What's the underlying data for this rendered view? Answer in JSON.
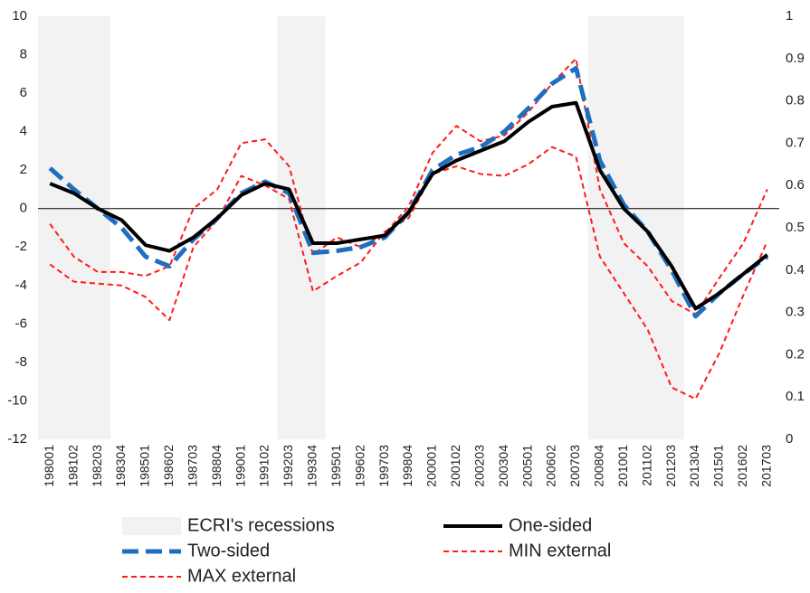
{
  "chart_data": {
    "type": "line",
    "categories": [
      "198001",
      "198102",
      "198203",
      "198304",
      "198501",
      "198602",
      "198703",
      "198804",
      "199001",
      "199102",
      "199203",
      "199304",
      "199501",
      "199602",
      "199703",
      "199804",
      "200001",
      "200102",
      "200203",
      "200304",
      "200501",
      "200602",
      "200703",
      "200804",
      "201001",
      "201102",
      "201203",
      "201304",
      "201501",
      "201602",
      "201703"
    ],
    "series": [
      {
        "name": "ECRI's recessions",
        "type": "bar",
        "axis": "y2",
        "color": "#f2f2f2",
        "values": [
          1,
          1,
          1,
          0,
          0,
          0,
          0,
          0,
          0,
          0,
          1,
          1,
          0,
          0,
          0,
          0,
          0,
          0,
          0,
          0,
          0,
          0,
          0,
          1,
          1,
          1,
          1,
          0,
          0,
          0,
          0
        ]
      },
      {
        "name": "One-sided",
        "type": "line",
        "color": "#000000",
        "dash": "solid",
        "width": 4,
        "values": [
          1.3,
          0.8,
          0,
          -0.6,
          -1.9,
          -2.2,
          -1.5,
          -0.5,
          0.7,
          1.3,
          1.0,
          -1.8,
          -1.8,
          -1.6,
          -1.4,
          -0.2,
          1.8,
          2.5,
          3.0,
          3.5,
          4.5,
          5.3,
          5.5,
          2.0,
          0.0,
          -1.2,
          -3.0,
          -5.2,
          -4.4,
          -3.4,
          -2.4
        ]
      },
      {
        "name": "Two-sided",
        "type": "line",
        "color": "#1f6fc0",
        "dash": "long",
        "width": 5,
        "values": [
          2.1,
          1.0,
          0,
          -1.0,
          -2.5,
          -3.0,
          -1.6,
          -0.5,
          0.8,
          1.4,
          0.8,
          -2.3,
          -2.2,
          -2.0,
          -1.5,
          -0.2,
          2.0,
          2.8,
          3.2,
          4.0,
          5.2,
          6.5,
          7.3,
          2.5,
          0.2,
          -1.2,
          -3.2,
          -5.6,
          -4.4,
          -3.4,
          -2.5
        ]
      },
      {
        "name": "MIN external",
        "type": "line",
        "color": "#ff1a1a",
        "dash": "short",
        "width": 2,
        "values": [
          -2.9,
          -3.8,
          -3.9,
          -4.0,
          -4.6,
          -5.8,
          -2.0,
          -0.6,
          1.7,
          1.2,
          0.5,
          -4.3,
          -3.5,
          -2.8,
          -1.2,
          -0.5,
          1.8,
          2.2,
          1.8,
          1.7,
          2.3,
          3.2,
          2.7,
          -2.5,
          -4.4,
          -6.3,
          -9.3,
          -9.9,
          -7.5,
          -4.5,
          -1.7
        ]
      },
      {
        "name": "MAX external",
        "type": "line",
        "color": "#ff1a1a",
        "dash": "short",
        "width": 2,
        "values": [
          -0.8,
          -2.5,
          -3.3,
          -3.3,
          -3.5,
          -3.0,
          0.0,
          1.0,
          3.4,
          3.6,
          2.2,
          -2.4,
          -1.5,
          -2.0,
          -1.3,
          0.1,
          2.9,
          4.3,
          3.5,
          3.8,
          5.0,
          6.5,
          7.8,
          1.0,
          -1.8,
          -3.0,
          -4.8,
          -5.5,
          -3.6,
          -1.8,
          1.0
        ]
      }
    ],
    "ylim": [
      -12,
      10
    ],
    "yticks": [
      -12,
      -10,
      -8,
      -6,
      -4,
      -2,
      0,
      2,
      4,
      6,
      8,
      10
    ],
    "y2lim": [
      0,
      1
    ],
    "y2ticks": [
      0,
      0.1,
      0.2,
      0.3,
      0.4,
      0.5,
      0.6,
      0.7,
      0.8,
      0.9,
      1
    ],
    "grid": false,
    "legend": "bottom"
  }
}
